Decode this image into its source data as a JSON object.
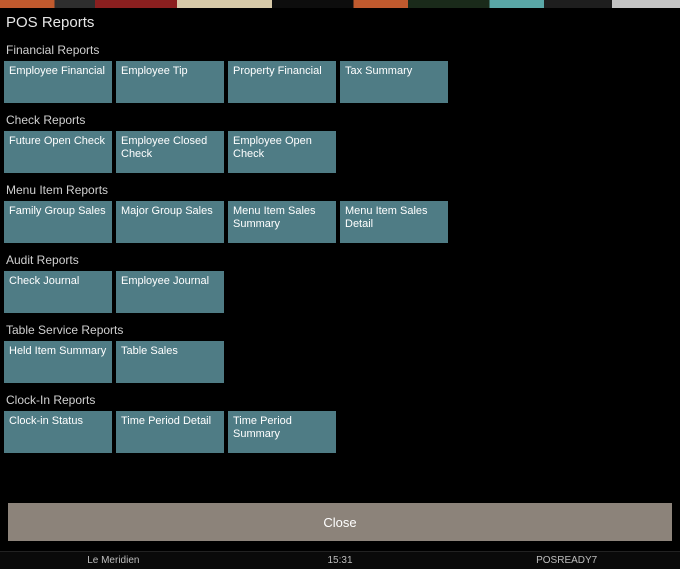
{
  "page_title": "POS Reports",
  "tile_color": "#4f7c85",
  "close_label": "Close",
  "close_bg": "#8c837a",
  "status": {
    "property": "Le Meridien",
    "time": "15:31",
    "workstation": "POSREADY7"
  },
  "sections": [
    {
      "title": "Financial Reports",
      "tiles": [
        {
          "label": "Employee Financial",
          "name": "employee-financial-button"
        },
        {
          "label": "Employee Tip",
          "name": "employee-tip-button"
        },
        {
          "label": "Property Financial",
          "name": "property-financial-button"
        },
        {
          "label": "Tax Summary",
          "name": "tax-summary-button"
        }
      ]
    },
    {
      "title": "Check Reports",
      "tiles": [
        {
          "label": "Future Open Check",
          "name": "future-open-check-button"
        },
        {
          "label": "Employee Closed Check",
          "name": "employee-closed-check-button"
        },
        {
          "label": "Employee Open Check",
          "name": "employee-open-check-button"
        }
      ]
    },
    {
      "title": "Menu Item Reports",
      "tiles": [
        {
          "label": "Family Group Sales",
          "name": "family-group-sales-button"
        },
        {
          "label": "Major Group Sales",
          "name": "major-group-sales-button"
        },
        {
          "label": "Menu Item Sales Summary",
          "name": "menu-item-sales-summary-button"
        },
        {
          "label": "Menu Item Sales Detail",
          "name": "menu-item-sales-detail-button"
        }
      ]
    },
    {
      "title": "Audit Reports",
      "tiles": [
        {
          "label": "Check Journal",
          "name": "check-journal-button"
        },
        {
          "label": "Employee Journal",
          "name": "employee-journal-button"
        }
      ]
    },
    {
      "title": "Table Service Reports",
      "tiles": [
        {
          "label": "Held Item Summary",
          "name": "held-item-summary-button"
        },
        {
          "label": "Table Sales",
          "name": "table-sales-button"
        }
      ]
    },
    {
      "title": "Clock-In Reports",
      "tiles": [
        {
          "label": "Clock-in Status",
          "name": "clock-in-status-button"
        },
        {
          "label": "Time Period Detail",
          "name": "time-period-detail-button"
        },
        {
          "label": "Time Period Summary",
          "name": "time-period-summary-button"
        }
      ]
    }
  ]
}
